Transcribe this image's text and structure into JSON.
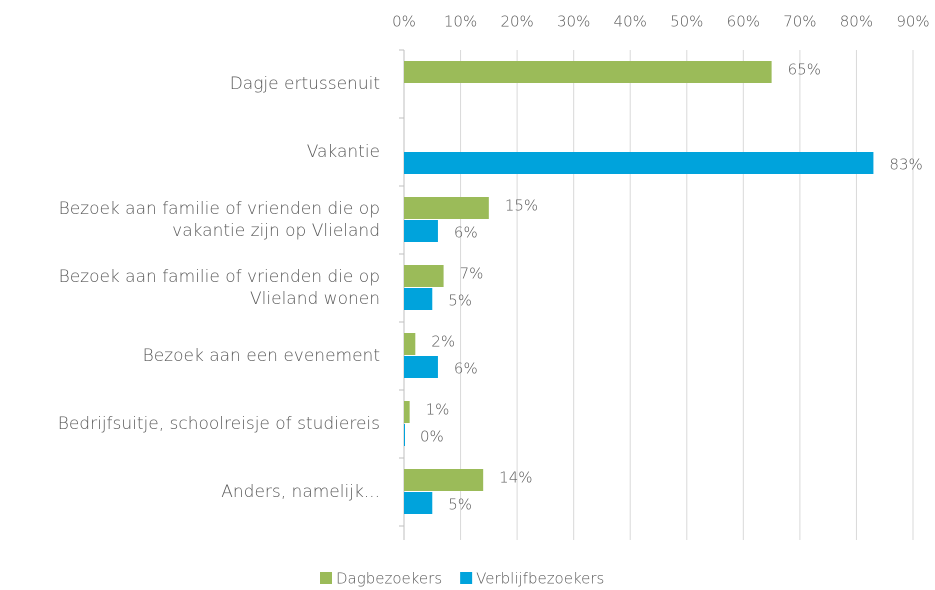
{
  "chart_data": {
    "type": "hbar",
    "categories": [
      "Dagje ertussenuit",
      "Vakantie",
      "Bezoek aan familie of vrienden die op vakantie zijn op Vlieland",
      "Bezoek aan familie of vrienden die op Vlieland wonen",
      "Bezoek aan een evenement",
      "Bedrijfsuitje, schoolreisje of studiereis",
      "Anders, namelijk..."
    ],
    "series": [
      {
        "name": "Dagbezoekers",
        "color": "#9bbb59",
        "values": [
          65,
          null,
          15,
          7,
          2,
          1,
          14
        ],
        "value_labels": [
          "65%",
          null,
          "15%",
          "7%",
          "2%",
          "1%",
          "14%"
        ]
      },
      {
        "name": "Verblijfbezoekers",
        "color": "#00a3dc",
        "values": [
          null,
          83,
          6,
          5,
          6,
          0,
          5
        ],
        "value_labels": [
          null,
          "83%",
          "6%",
          "5%",
          "6%",
          "0%",
          "5%"
        ]
      }
    ],
    "xlim": [
      0,
      90
    ],
    "xticks": [
      {
        "value": 0,
        "label": "0%"
      },
      {
        "value": 10,
        "label": "10%"
      },
      {
        "value": 20,
        "label": "20%"
      },
      {
        "value": 30,
        "label": "30%"
      },
      {
        "value": 40,
        "label": "40%"
      },
      {
        "value": 50,
        "label": "50%"
      },
      {
        "value": 60,
        "label": "60%"
      },
      {
        "value": 70,
        "label": "70%"
      },
      {
        "value": 80,
        "label": "80%"
      },
      {
        "value": 90,
        "label": "90%"
      }
    ],
    "grid": true,
    "legend": "bottom"
  }
}
